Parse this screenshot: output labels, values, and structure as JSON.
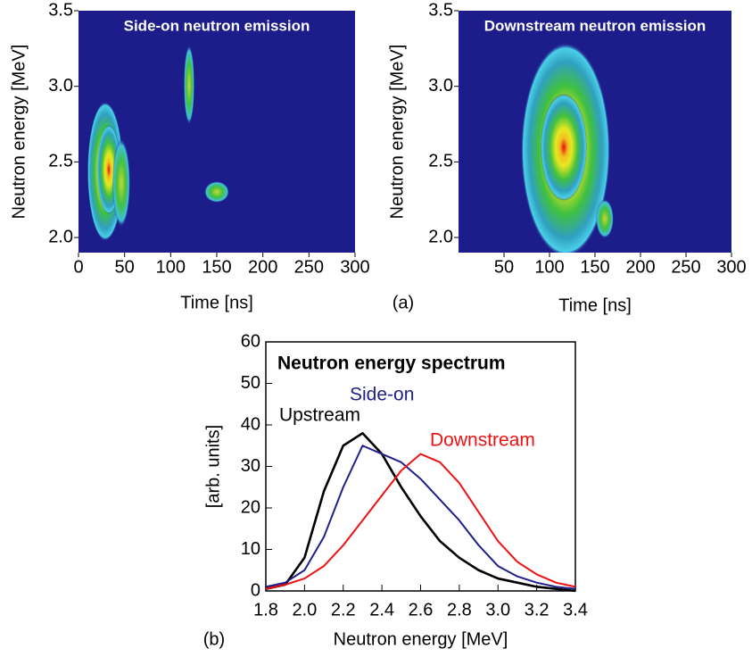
{
  "chart_data": [
    {
      "type": "heatmap",
      "title": "Side-on neutron emission",
      "x_label": "Time [ns]",
      "y_label": "Neutron energy [MeV]",
      "xlim": [
        0,
        300
      ],
      "ylim": [
        1.9,
        3.5
      ],
      "xticks": [
        0,
        50,
        100,
        150,
        200,
        250,
        300
      ],
      "yticks": [
        {
          "value": 2,
          "label": "2.0"
        },
        2.5,
        {
          "value": 3,
          "label": "3.0"
        },
        3.5
      ],
      "color": "#1c1c8a"
    },
    {
      "type": "heatmap",
      "title": "Downstream neutron emission",
      "x_label": "Time [ns]",
      "y_label": "Neutron energy [MeV]",
      "xlim": [
        0,
        300
      ],
      "ylim": [
        1.9,
        3.5
      ],
      "xticks": [
        50,
        100,
        150,
        200,
        250,
        300
      ],
      "yticks": [
        {
          "value": 2,
          "label": "2.0"
        },
        2.5,
        {
          "value": 3,
          "label": "3.0"
        },
        3.5
      ],
      "color": "#1c1c8a"
    },
    {
      "type": "line",
      "title": "Neutron energy spectrum",
      "x_label": "Neutron energy [MeV]",
      "y_label": "[arb. units]",
      "x": [
        1.8,
        1.9,
        2.0,
        2.1,
        2.2,
        2.3,
        2.4,
        2.5,
        2.6,
        2.7,
        2.8,
        2.9,
        3.0,
        3.1,
        3.2,
        3.3,
        3.4
      ],
      "series": [
        {
          "name": "Upstream",
          "color": "#000000",
          "values": [
            0.5,
            1.5,
            8,
            24,
            35,
            38,
            33,
            25,
            18,
            12,
            8,
            5,
            3,
            2,
            1,
            0.5,
            0
          ]
        },
        {
          "name": "Side-on",
          "color": "#1f1f8a",
          "values": [
            1,
            2,
            5,
            13,
            25,
            35,
            33,
            31,
            27,
            22,
            17,
            11,
            6,
            3.5,
            2,
            1,
            0.5
          ]
        },
        {
          "name": "Downstream",
          "color": "#ee1111",
          "values": [
            0.5,
            1.5,
            3,
            6,
            11,
            17,
            23,
            29,
            33,
            31,
            26,
            19,
            12,
            7,
            4,
            2,
            1
          ]
        }
      ],
      "xlim": [
        1.8,
        3.4
      ],
      "ylim": [
        0,
        60
      ],
      "xticks": [
        1.8,
        {
          "value": 2,
          "label": "2.0"
        },
        2.2,
        2.4,
        2.6,
        2.8,
        {
          "value": 3,
          "label": "3.0"
        },
        3.2,
        3.4
      ],
      "yticks": [
        0,
        10,
        20,
        30,
        40,
        50,
        60
      ]
    }
  ],
  "panel_labels": [
    "(a)",
    "(b)"
  ]
}
